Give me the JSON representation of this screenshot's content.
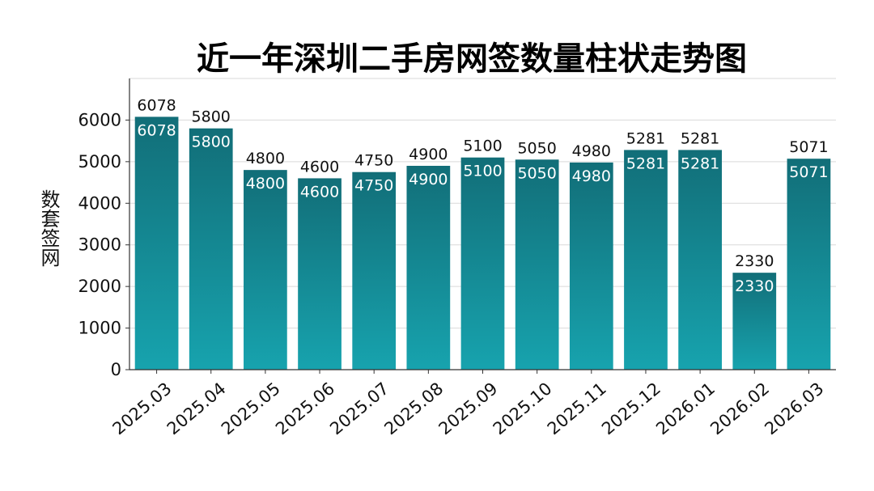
{
  "chart_data": {
    "type": "bar",
    "title": "近一年深圳二手房网签数量柱状走势图",
    "xlabel": "",
    "ylabel": "数套签网",
    "categories": [
      "2025.03",
      "2025.04",
      "2025.05",
      "2025.06",
      "2025.07",
      "2025.08",
      "2025.09",
      "2025.10",
      "2025.11",
      "2025.12",
      "2026.01",
      "2026.02",
      "2026.03"
    ],
    "values": [
      6078,
      5800,
      4800,
      4600,
      4750,
      4900,
      5100,
      5050,
      4980,
      5281,
      5281,
      2330,
      5071
    ],
    "yticks": [
      0,
      1000,
      2000,
      3000,
      4000,
      5000,
      6000
    ],
    "ylim": [
      0,
      7000
    ],
    "grid": "y",
    "legend": "none",
    "bar_color_top": "#126e78",
    "bar_color_bottom": "#17a3ae"
  }
}
